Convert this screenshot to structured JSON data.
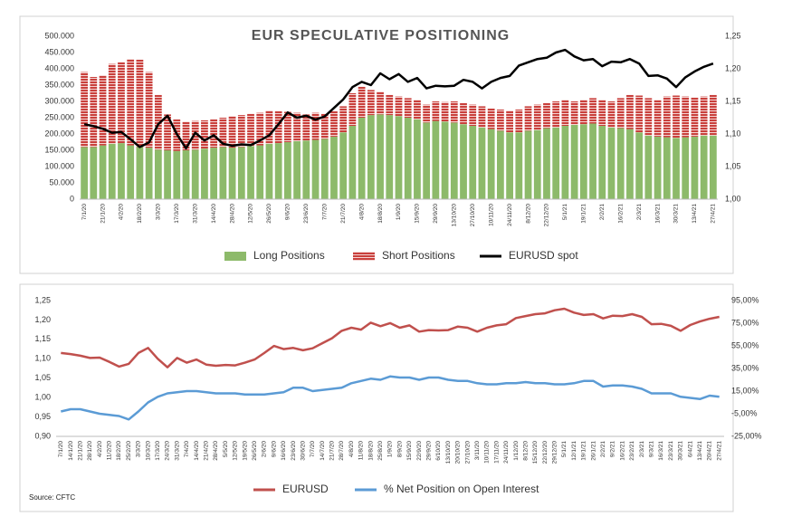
{
  "source": "Source: CFTC",
  "chart_data": [
    {
      "type": "bar",
      "stacked": true,
      "title": "EUR SPECULATIVE POSITIONING",
      "categories": [
        "7/1/20",
        null,
        "21/1/20",
        null,
        "4/2/20",
        null,
        "18/2/20",
        null,
        "3/3/20",
        null,
        "17/3/20",
        null,
        "31/3/20",
        null,
        "14/4/20",
        null,
        "28/4/20",
        null,
        "12/5/20",
        null,
        "26/5/20",
        null,
        "9/6/20",
        null,
        "23/6/20",
        null,
        "7/7/20",
        null,
        "21/7/20",
        null,
        "4/8/20",
        null,
        "18/8/20",
        null,
        "1/9/20",
        null,
        "15/9/20",
        null,
        "29/9/20",
        null,
        "13/10/20",
        null,
        "27/10/20",
        null,
        "10/11/20",
        null,
        "24/11/20",
        null,
        "8/12/20",
        null,
        "22/12/20",
        null,
        "5/1/21",
        null,
        "19/1/21",
        null,
        "2/2/21",
        null,
        "16/2/21",
        null,
        "2/3/21",
        null,
        "16/3/21",
        null,
        "30/3/21",
        null,
        "13/4/21",
        null,
        "27/4/21"
      ],
      "series": [
        {
          "name": "Long Positions",
          "type": "bar",
          "color": "#8dba6a",
          "values": [
            160000,
            160000,
            165000,
            170000,
            172000,
            165000,
            160000,
            158000,
            152000,
            150000,
            148000,
            150000,
            152000,
            155000,
            158000,
            160000,
            158000,
            160000,
            163000,
            165000,
            170000,
            172000,
            175000,
            178000,
            180000,
            182000,
            185000,
            192000,
            205000,
            225000,
            250000,
            258000,
            260000,
            258000,
            255000,
            250000,
            245000,
            235000,
            240000,
            238000,
            235000,
            230000,
            225000,
            220000,
            215000,
            210000,
            205000,
            205000,
            210000,
            212000,
            218000,
            220000,
            225000,
            228000,
            230000,
            232000,
            225000,
            220000,
            218000,
            215000,
            205000,
            195000,
            192000,
            190000,
            188000,
            190000,
            192000,
            195000,
            195000
          ]
        },
        {
          "name": "Short Positions",
          "type": "bar",
          "color": "#c9403c",
          "values": [
            230000,
            215000,
            215000,
            245000,
            248000,
            265000,
            268000,
            232000,
            168000,
            110000,
            97000,
            88000,
            88000,
            87000,
            87000,
            90000,
            97000,
            98000,
            99000,
            100000,
            102000,
            98000,
            93000,
            87000,
            80000,
            83000,
            77000,
            78000,
            80000,
            100000,
            95000,
            77000,
            70000,
            62000,
            60000,
            60000,
            60000,
            55000,
            60000,
            60000,
            65000,
            65000,
            65000,
            65000,
            63000,
            65000,
            67000,
            70000,
            75000,
            78000,
            77000,
            80000,
            80000,
            72000,
            75000,
            78000,
            80000,
            80000,
            92000,
            105000,
            113000,
            115000,
            113000,
            125000,
            130000,
            125000,
            120000,
            120000,
            125000
          ]
        },
        {
          "name": "EURUSD spot",
          "type": "line",
          "axis": "y2",
          "color": "#000000",
          "values": [
            1.115,
            1.112,
            1.108,
            1.102,
            1.103,
            1.092,
            1.08,
            1.087,
            1.115,
            1.128,
            1.1,
            1.078,
            1.102,
            1.09,
            1.098,
            1.085,
            1.082,
            1.084,
            1.083,
            1.09,
            1.098,
            1.115,
            1.133,
            1.125,
            1.128,
            1.122,
            1.127,
            1.14,
            1.153,
            1.172,
            1.18,
            1.175,
            1.193,
            1.184,
            1.192,
            1.18,
            1.186,
            1.17,
            1.174,
            1.173,
            1.174,
            1.183,
            1.18,
            1.17,
            1.18,
            1.186,
            1.189,
            1.205,
            1.21,
            1.215,
            1.217,
            1.225,
            1.229,
            1.219,
            1.213,
            1.215,
            1.204,
            1.211,
            1.21,
            1.215,
            1.208,
            1.189,
            1.19,
            1.185,
            1.172,
            1.187,
            1.196,
            1.203,
            1.208
          ]
        }
      ],
      "ylim": [
        0,
        500000
      ],
      "yticks": [
        {
          "value": 0,
          "label": "0"
        },
        {
          "value": 50000,
          "label": "50.000"
        },
        {
          "value": 100000,
          "label": "100.000"
        },
        {
          "value": 150000,
          "label": "150.000"
        },
        {
          "value": 200000,
          "label": "200.000"
        },
        {
          "value": 250000,
          "label": "250.000"
        },
        {
          "value": 300000,
          "label": "300.000"
        },
        {
          "value": 350000,
          "label": "350.000"
        },
        {
          "value": 400000,
          "label": "400.000"
        },
        {
          "value": 450000,
          "label": "450.000"
        },
        {
          "value": 500000,
          "label": "500.000"
        }
      ],
      "y2lim": [
        1.0,
        1.25
      ],
      "y2ticks": [
        {
          "value": 1.0,
          "label": "1,00"
        },
        {
          "value": 1.05,
          "label": "1,05"
        },
        {
          "value": 1.1,
          "label": "1,10"
        },
        {
          "value": 1.15,
          "label": "1,15"
        },
        {
          "value": 1.2,
          "label": "1,20"
        },
        {
          "value": 1.25,
          "label": "1,25"
        }
      ],
      "grid": false,
      "legend": "bottom"
    },
    {
      "type": "line",
      "categories": [
        "7/1/20",
        "14/1/20",
        "21/1/20",
        "28/1/20",
        "4/2/20",
        "11/2/20",
        "18/2/20",
        "25/2/20",
        "3/3/20",
        "10/3/20",
        "17/3/20",
        "24/3/20",
        "31/3/20",
        "7/4/20",
        "14/4/20",
        "21/4/20",
        "28/4/20",
        "5/5/20",
        "12/5/20",
        "19/5/20",
        "26/5/20",
        "2/6/20",
        "9/6/20",
        "16/6/20",
        "23/6/20",
        "30/6/20",
        "7/7/20",
        "14/7/20",
        "21/7/20",
        "28/7/20",
        "4/8/20",
        "11/8/20",
        "18/8/20",
        "25/8/20",
        "1/9/20",
        "8/9/20",
        "15/9/20",
        "22/9/20",
        "29/9/20",
        "6/10/20",
        "13/10/20",
        "20/10/20",
        "27/10/20",
        "3/11/20",
        "10/11/20",
        "17/11/20",
        "24/11/20",
        "1/12/20",
        "8/12/20",
        "15/12/20",
        "22/12/20",
        "29/12/20",
        "5/1/21",
        "12/1/21",
        "19/1/21",
        "26/1/21",
        "2/2/21",
        "9/2/21",
        "16/2/21",
        "23/2/21",
        "2/3/21",
        "9/3/21",
        "16/3/21",
        "23/3/21",
        "30/3/21",
        "6/4/21",
        "13/4/21",
        "20/4/21",
        "27/4/21"
      ],
      "series": [
        {
          "name": "EURUSD",
          "type": "line",
          "color": "#c0504d",
          "values": [
            1.115,
            1.112,
            1.108,
            1.102,
            1.103,
            1.092,
            1.08,
            1.087,
            1.115,
            1.128,
            1.1,
            1.078,
            1.102,
            1.09,
            1.098,
            1.085,
            1.082,
            1.084,
            1.083,
            1.09,
            1.098,
            1.115,
            1.133,
            1.125,
            1.128,
            1.122,
            1.127,
            1.14,
            1.153,
            1.172,
            1.18,
            1.175,
            1.193,
            1.184,
            1.192,
            1.18,
            1.186,
            1.17,
            1.174,
            1.173,
            1.174,
            1.183,
            1.18,
            1.17,
            1.18,
            1.186,
            1.189,
            1.205,
            1.21,
            1.215,
            1.217,
            1.225,
            1.229,
            1.219,
            1.213,
            1.215,
            1.204,
            1.211,
            1.21,
            1.215,
            1.208,
            1.189,
            1.19,
            1.185,
            1.172,
            1.187,
            1.196,
            1.203,
            1.208
          ]
        },
        {
          "name": "% Net Position on Open Interest",
          "type": "line",
          "axis": "y2",
          "color": "#5b9bd5",
          "values": [
            -3,
            -1,
            -1,
            -3,
            -5,
            -6,
            -7,
            -10,
            -3,
            5,
            10,
            13,
            14,
            15,
            15,
            14,
            13,
            13,
            13,
            12,
            12,
            12,
            13,
            14,
            18,
            18,
            15,
            16,
            17,
            18,
            22,
            24,
            26,
            25,
            28,
            27,
            27,
            25,
            27,
            27,
            25,
            24,
            24,
            22,
            21,
            21,
            22,
            22,
            23,
            22,
            22,
            21,
            21,
            22,
            24,
            24,
            19,
            20,
            20,
            19,
            17,
            13,
            13,
            13,
            10,
            9,
            8,
            11,
            10
          ]
        }
      ],
      "ylim": [
        0.9,
        1.25
      ],
      "yticks": [
        {
          "value": 0.9,
          "label": "0,90"
        },
        {
          "value": 0.95,
          "label": "0,95"
        },
        {
          "value": 1.0,
          "label": "1,00"
        },
        {
          "value": 1.05,
          "label": "1,05"
        },
        {
          "value": 1.1,
          "label": "1,10"
        },
        {
          "value": 1.15,
          "label": "1,15"
        },
        {
          "value": 1.2,
          "label": "1,20"
        },
        {
          "value": 1.25,
          "label": "1,25"
        }
      ],
      "y2lim": [
        -25,
        95
      ],
      "y2ticks": [
        {
          "value": -25,
          "label": "-25,00%"
        },
        {
          "value": -5,
          "label": "-5,00%"
        },
        {
          "value": 15,
          "label": "15,00%"
        },
        {
          "value": 35,
          "label": "35,00%"
        },
        {
          "value": 55,
          "label": "55,00%"
        },
        {
          "value": 75,
          "label": "75,00%"
        },
        {
          "value": 95,
          "label": "95,00%"
        }
      ],
      "grid": false,
      "legend": "bottom"
    }
  ]
}
